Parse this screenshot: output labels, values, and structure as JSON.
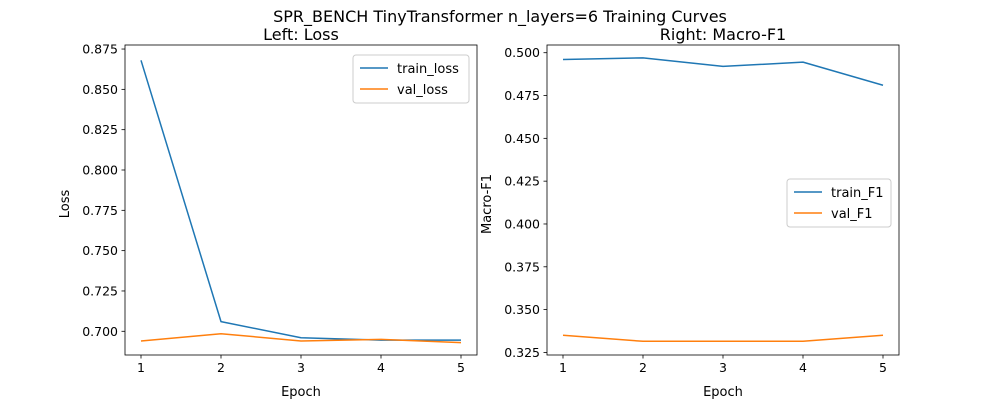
{
  "figure": {
    "suptitle": "SPR_BENCH TinyTransformer n_layers=6 Training Curves"
  },
  "chart_data": [
    {
      "type": "line",
      "title": "Left: Loss",
      "xlabel": "Epoch",
      "ylabel": "Loss",
      "x": [
        1,
        2,
        3,
        4,
        5
      ],
      "xticks": [
        "1",
        "2",
        "3",
        "4",
        "5"
      ],
      "xlim": [
        0.8,
        5.2
      ],
      "ylim": [
        0.6853,
        0.8775
      ],
      "yticks": [
        0.7,
        0.725,
        0.75,
        0.775,
        0.8,
        0.825,
        0.85,
        0.875
      ],
      "ytick_labels": [
        "0.700",
        "0.725",
        "0.750",
        "0.775",
        "0.800",
        "0.825",
        "0.850",
        "0.875"
      ],
      "legend": "top-right",
      "grid": false,
      "series": [
        {
          "name": "train_loss",
          "color": "#1f77b4",
          "values": [
            0.868,
            0.706,
            0.696,
            0.6945,
            0.6945
          ]
        },
        {
          "name": "val_loss",
          "color": "#ff7f0e",
          "values": [
            0.694,
            0.6985,
            0.694,
            0.695,
            0.693
          ]
        }
      ]
    },
    {
      "type": "line",
      "title": "Right: Macro-F1",
      "xlabel": "Epoch",
      "ylabel": "Macro-F1",
      "x": [
        1,
        2,
        3,
        4,
        5
      ],
      "xticks": [
        "1",
        "2",
        "3",
        "4",
        "5"
      ],
      "xlim": [
        0.8,
        5.2
      ],
      "ylim": [
        0.3235,
        0.5045
      ],
      "yticks": [
        0.325,
        0.35,
        0.375,
        0.4,
        0.425,
        0.45,
        0.475,
        0.5
      ],
      "ytick_labels": [
        "0.325",
        "0.350",
        "0.375",
        "0.400",
        "0.425",
        "0.450",
        "0.475",
        "0.500"
      ],
      "legend": "center-right",
      "grid": false,
      "series": [
        {
          "name": "train_F1",
          "color": "#1f77b4",
          "values": [
            0.496,
            0.497,
            0.492,
            0.4945,
            0.481
          ]
        },
        {
          "name": "val_F1",
          "color": "#ff7f0e",
          "values": [
            0.335,
            0.3315,
            0.3315,
            0.3315,
            0.335
          ]
        }
      ]
    }
  ]
}
